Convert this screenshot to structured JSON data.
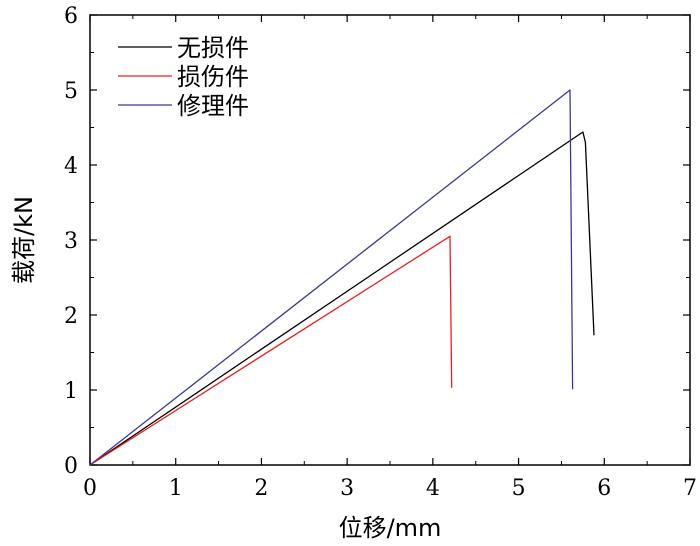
{
  "chart_data": {
    "type": "line",
    "xlabel": "位移/mm",
    "ylabel": "载荷/kN",
    "xlim": [
      0,
      7
    ],
    "ylim": [
      0,
      6
    ],
    "xticks": [
      "0",
      "1",
      "2",
      "3",
      "4",
      "5",
      "6",
      "7"
    ],
    "yticks": [
      "0",
      "1",
      "2",
      "3",
      "4",
      "5",
      "6"
    ],
    "grid": false,
    "legend_position": "top-left",
    "series": [
      {
        "name": "无损件",
        "color": "#000000",
        "x": [
          0,
          5.75,
          5.78,
          5.88
        ],
        "y": [
          0,
          4.44,
          4.3,
          1.73
        ]
      },
      {
        "name": "损伤件",
        "color": "#e8201f",
        "x": [
          0,
          4.2,
          4.22
        ],
        "y": [
          0,
          3.05,
          1.03
        ]
      },
      {
        "name": "修理件",
        "color": "#3a3a8c",
        "x": [
          0,
          5.6,
          5.63
        ],
        "y": [
          0,
          5.0,
          1.01
        ]
      }
    ]
  }
}
